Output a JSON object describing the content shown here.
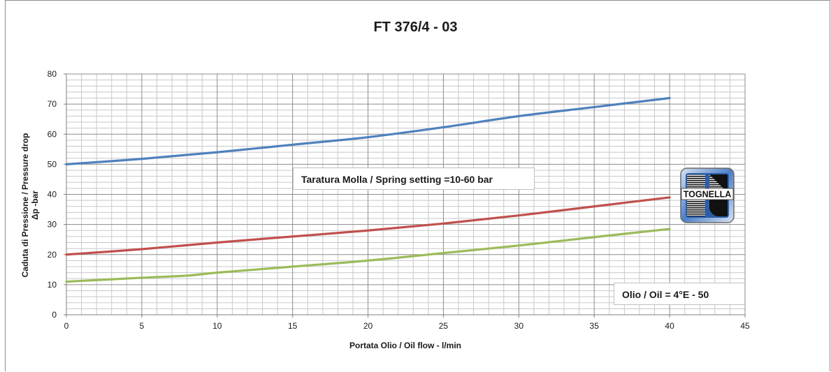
{
  "chart_data": {
    "type": "line",
    "title": "FT 376/4 - 03",
    "xlabel": "Portata Olio / Oil flow -  l/min",
    "ylabel_line1": "Caduta di Pressione / Pressure drop",
    "ylabel_line2": "Δp -bar",
    "xlim": [
      0,
      45
    ],
    "ylim": [
      0,
      80
    ],
    "x_ticks": [
      0,
      5,
      10,
      15,
      20,
      25,
      30,
      35,
      40,
      45
    ],
    "y_ticks": [
      0,
      10,
      20,
      30,
      40,
      50,
      60,
      70,
      80
    ],
    "grid": true,
    "series": [
      {
        "color": "#4f81bd",
        "x": [
          0,
          5,
          10,
          15,
          20,
          25,
          30,
          35,
          40
        ],
        "y": [
          50,
          51.8,
          54,
          56.5,
          59,
          62.3,
          66,
          69,
          72
        ]
      },
      {
        "color": "#c0504d",
        "x": [
          0,
          5,
          10,
          15,
          20,
          25,
          30,
          35,
          40
        ],
        "y": [
          20,
          21.8,
          24,
          26,
          28,
          30.3,
          33,
          36,
          39
        ]
      },
      {
        "color": "#9bbb59",
        "x": [
          0,
          5,
          8,
          10,
          15,
          20,
          25,
          30,
          35,
          40
        ],
        "y": [
          11,
          12.3,
          13,
          14,
          16,
          18,
          20.5,
          23,
          25.8,
          28.5
        ]
      }
    ],
    "annotations": [
      "Taratura Molla / Spring setting =10-60 bar",
      "Olio / Oil = 4°E - 50"
    ]
  },
  "logo": {
    "text": "TOGNELLA"
  }
}
